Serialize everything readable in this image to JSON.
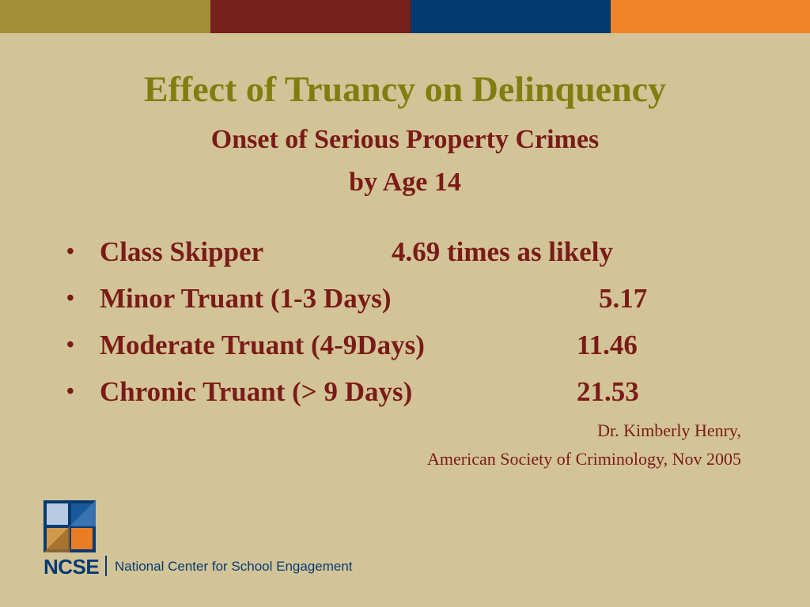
{
  "colors": {
    "background": "#d3c497",
    "top_bar": [
      "#a28f3a",
      "#77201e",
      "#033b70",
      "#f08428"
    ],
    "title": "#827d10",
    "text": "#7a1b17",
    "logo_text": "#063a73"
  },
  "slide": {
    "title": "Effect of Truancy on Delinquency",
    "subtitle_line1": "Onset of Serious Property Crimes",
    "subtitle_line2": "by Age 14",
    "bullet_symbol": "•",
    "bullets": [
      {
        "label": "Class Skipper",
        "value": "4.69 times as likely"
      },
      {
        "label": "Minor Truant (1-3 Days)",
        "value": "5.17"
      },
      {
        "label": "Moderate Truant (4-9Days)",
        "value": "11.46"
      },
      {
        "label": "Chronic Truant (> 9 Days)",
        "value": "21.53"
      }
    ],
    "citation_line1": "Dr. Kimberly Henry,",
    "citation_line2": "American Society of Criminology, Nov 2005"
  },
  "footer": {
    "logo_icon": "ncse-square-logo-icon",
    "logo_abbrev": "NCSE",
    "organization": "National Center for School Engagement"
  }
}
